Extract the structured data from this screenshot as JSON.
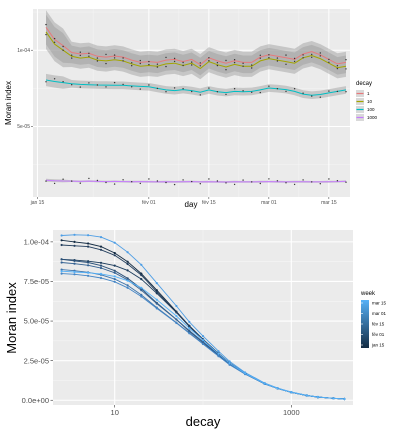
{
  "chart_data": [
    {
      "type": "line",
      "xlabel": "day",
      "ylabel": "Moran index",
      "x_ticks": [
        "jan 15",
        "fév 01",
        "fév 15",
        "mar 01",
        "mar 15"
      ],
      "y_ticks": [
        "1e-04",
        "5e-05"
      ],
      "y_tick_values": [
        0.0001,
        5e-05
      ],
      "ylim": [
        3.8e-06,
        0.000127
      ],
      "x": [
        "jan 08",
        "jan 10",
        "jan 12",
        "jan 14",
        "jan 16",
        "jan 18",
        "jan 20",
        "jan 22",
        "jan 24",
        "jan 26",
        "jan 28",
        "jan 30",
        "fév 01",
        "fév 03",
        "fév 05",
        "fév 07",
        "fév 09",
        "fév 11",
        "fév 13",
        "fév 15",
        "fév 17",
        "fév 19",
        "fév 21",
        "fév 23",
        "fév 25",
        "fév 27",
        "mar 01",
        "mar 03",
        "mar 05",
        "mar 07",
        "mar 09",
        "mar 11",
        "mar 13",
        "mar 15",
        "mar 17",
        "mar 19"
      ],
      "grid": true,
      "legend": {
        "title": "decay",
        "position": "right"
      },
      "series": [
        {
          "name": "1",
          "color": "#e8797b",
          "values": [
            0.000115,
            0.000107,
            0.000103,
            9.85e-05,
            9.75e-05,
            9.8e-05,
            9.6e-05,
            9.55e-05,
            9.62e-05,
            9.55e-05,
            9.35e-05,
            9.2e-05,
            9.25e-05,
            9.2e-05,
            9.35e-05,
            9.4e-05,
            9.25e-05,
            9.4e-05,
            9.05e-05,
            9.5e-05,
            9.3e-05,
            9.15e-05,
            9.32e-05,
            9.2e-05,
            9.2e-05,
            9.55e-05,
            9.7e-05,
            9.6e-05,
            9.5e-05,
            9.4e-05,
            9.75e-05,
            9.9e-05,
            9.7e-05,
            9.4e-05,
            9.1e-05,
            9.2e-05
          ]
        },
        {
          "name": "10",
          "color": "#a3a500",
          "values": [
            0.000112,
            0.000104,
            0.0001,
            9.6e-05,
            9.48e-05,
            9.55e-05,
            9.35e-05,
            9.3e-05,
            9.38e-05,
            9.3e-05,
            9.1e-05,
            8.95e-05,
            9e-05,
            8.95e-05,
            9.1e-05,
            9.15e-05,
            9e-05,
            9.15e-05,
            8.8e-05,
            9.25e-05,
            9.05e-05,
            8.9e-05,
            9.07e-05,
            8.95e-05,
            8.95e-05,
            9.3e-05,
            9.45e-05,
            9.35e-05,
            9.25e-05,
            9.15e-05,
            9.5e-05,
            9.65e-05,
            9.45e-05,
            9.15e-05,
            8.85e-05,
            8.95e-05
          ]
        },
        {
          "name": "100",
          "color": "#00bfc4",
          "values": [
            8.05e-05,
            7.95e-05,
            7.88e-05,
            7.8e-05,
            7.76e-05,
            7.74e-05,
            7.72e-05,
            7.71e-05,
            7.7e-05,
            7.7e-05,
            7.66e-05,
            7.63e-05,
            7.6e-05,
            7.5e-05,
            7.4e-05,
            7.35e-05,
            7.42e-05,
            7.35e-05,
            7.25e-05,
            7.4e-05,
            7.28e-05,
            7.22e-05,
            7.3e-05,
            7.28e-05,
            7.3e-05,
            7.4e-05,
            7.52e-05,
            7.48e-05,
            7.42e-05,
            7.3e-05,
            7.12e-05,
            7.05e-05,
            7.1e-05,
            7.2e-05,
            7.3e-05,
            7.4e-05
          ]
        },
        {
          "name": "1000",
          "color": "#c77cff",
          "values": [
            1.48e-05,
            1.45e-05,
            1.43e-05,
            1.42e-05,
            1.4e-05,
            1.42e-05,
            1.4e-05,
            1.39e-05,
            1.4e-05,
            1.39e-05,
            1.38e-05,
            1.39e-05,
            1.38e-05,
            1.37e-05,
            1.38e-05,
            1.37e-05,
            1.38e-05,
            1.39e-05,
            1.37e-05,
            1.38e-05,
            1.37e-05,
            1.36e-05,
            1.38e-05,
            1.37e-05,
            1.37e-05,
            1.38e-05,
            1.39e-05,
            1.38e-05,
            1.37e-05,
            1.38e-05,
            1.38e-05,
            1.37e-05,
            1.37e-05,
            1.38e-05,
            1.39e-05,
            1.41e-05
          ]
        }
      ]
    },
    {
      "type": "line",
      "xlabel": "decay",
      "ylabel": "Moran index",
      "x_scale": "log",
      "xlim": [
        2,
        5000
      ],
      "ylim": [
        -3e-06,
        0.0001075
      ],
      "x_ticks": [
        "10",
        "1000"
      ],
      "x_tick_values": [
        10,
        1000
      ],
      "y_ticks": [
        "0.0e+00",
        "2.5e-05",
        "5.0e-05",
        "7.5e-05",
        "1.0e-04"
      ],
      "y_tick_values": [
        0,
        2.5e-05,
        5e-05,
        7.5e-05,
        0.0001
      ],
      "x": [
        2.5,
        3.5,
        5,
        7,
        10,
        14,
        20,
        30,
        50,
        70,
        100,
        150,
        200,
        300,
        500,
        700,
        1000,
        1500,
        2000,
        3000,
        4000
      ],
      "grid": true,
      "legend": {
        "title": "week",
        "position": "right",
        "labels": [
          "mar 15",
          "mar 01",
          "fév 15",
          "fév 01",
          "jan 15"
        ],
        "gradient": [
          "#56b1f7",
          "#132b43"
        ]
      },
      "series": [
        {
          "color": "#132b43",
          "values": [
            0.000101,
            0.0001,
            9.9e-05,
            9.7e-05,
            9.3e-05,
            8.75e-05,
            8e-05,
            6.95e-05,
            5.6e-05,
            4.7e-05,
            3.85e-05,
            2.95e-05,
            2.35e-05,
            1.7e-05,
            1.05e-05,
            7.5e-06,
            5e-06,
            3e-06,
            2e-06,
            1.2e-06,
            8e-07
          ]
        },
        {
          "color": "#1c3c5c",
          "values": [
            8.9e-05,
            8.85e-05,
            8.78e-05,
            8.68e-05,
            8.5e-05,
            8.2e-05,
            7.65e-05,
            6.75e-05,
            5.55e-05,
            4.7e-05,
            3.85e-05,
            2.95e-05,
            2.35e-05,
            1.7e-05,
            1.05e-05,
            7.5e-06,
            5e-06,
            3e-06,
            2e-06,
            1.2e-06,
            8e-07
          ]
        },
        {
          "color": "#243f5e",
          "values": [
            9.8e-05,
            9.75e-05,
            9.7e-05,
            9.5e-05,
            9.15e-05,
            8.6e-05,
            7.9e-05,
            6.85e-05,
            5.55e-05,
            4.65e-05,
            3.82e-05,
            2.93e-05,
            2.34e-05,
            1.7e-05,
            1.05e-05,
            7.5e-06,
            5e-06,
            3e-06,
            2e-06,
            1.2e-06,
            8e-07
          ]
        },
        {
          "color": "#2b5179",
          "values": [
            8.9e-05,
            8.8e-05,
            8.7e-05,
            8.5e-05,
            8.18e-05,
            7.7e-05,
            7.05e-05,
            6.15e-05,
            5.1e-05,
            4.35e-05,
            3.65e-05,
            2.83e-05,
            2.28e-05,
            1.67e-05,
            1.04e-05,
            7.4e-06,
            5e-06,
            3e-06,
            2e-06,
            1.2e-06,
            8e-07
          ]
        },
        {
          "color": "#346293",
          "values": [
            8.7e-05,
            8.62e-05,
            8.52e-05,
            8.35e-05,
            8.05e-05,
            7.6e-05,
            6.95e-05,
            6.1e-05,
            5.1e-05,
            4.4e-05,
            3.7e-05,
            2.88e-05,
            2.32e-05,
            1.68e-05,
            1.04e-05,
            7.4e-06,
            5e-06,
            3e-06,
            2e-06,
            1.2e-06,
            8e-07
          ]
        },
        {
          "color": "#3d74ac",
          "values": [
            8.25e-05,
            8.18e-05,
            8.08e-05,
            7.92e-05,
            7.65e-05,
            7.25e-05,
            6.65e-05,
            5.85e-05,
            4.9e-05,
            4.25e-05,
            3.58e-05,
            2.8e-05,
            2.26e-05,
            1.66e-05,
            1.03e-05,
            7.4e-06,
            5e-06,
            3e-06,
            2e-06,
            1.2e-06,
            8e-07
          ]
        },
        {
          "color": "#4586c6",
          "values": [
            8e-05,
            7.95e-05,
            7.86e-05,
            7.72e-05,
            7.48e-05,
            7.1e-05,
            6.55e-05,
            5.8e-05,
            4.88e-05,
            4.23e-05,
            3.55e-05,
            2.78e-05,
            2.24e-05,
            1.65e-05,
            1.03e-05,
            7.4e-06,
            5e-06,
            3e-06,
            2e-06,
            1.2e-06,
            8e-07
          ]
        },
        {
          "color": "#4e9ee5",
          "values": [
            0.000104,
            0.0001045,
            0.0001042,
            0.000103,
            9.95e-05,
            9.35e-05,
            8.55e-05,
            7.4e-05,
            5.95e-05,
            4.95e-05,
            4.05e-05,
            3.1e-05,
            2.45e-05,
            1.75e-05,
            1.08e-05,
            7.7e-06,
            5.2e-06,
            3.1e-06,
            2.1e-06,
            1.2e-06,
            8e-07
          ]
        },
        {
          "color": "#56b1f7",
          "values": [
            8.15e-05,
            8.1e-05,
            8.05e-05,
            7.98e-05,
            7.82e-05,
            7.55e-05,
            7.1e-05,
            6.35e-05,
            5.32e-05,
            4.55e-05,
            3.8e-05,
            2.93e-05,
            2.34e-05,
            1.7e-05,
            1.05e-05,
            7.5e-06,
            5e-06,
            3e-06,
            2e-06,
            1.2e-06,
            8e-07
          ]
        }
      ]
    }
  ]
}
